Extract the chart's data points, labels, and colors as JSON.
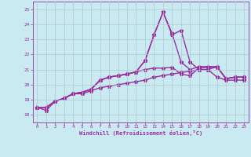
{
  "xlabel": "Windchill (Refroidissement éolien,°C)",
  "xlim": [
    -0.5,
    23.5
  ],
  "ylim": [
    17.5,
    25.5
  ],
  "yticks": [
    18,
    19,
    20,
    21,
    22,
    23,
    24,
    25
  ],
  "xticks": [
    0,
    1,
    2,
    3,
    4,
    5,
    6,
    7,
    8,
    9,
    10,
    11,
    12,
    13,
    14,
    15,
    16,
    17,
    18,
    19,
    20,
    21,
    22,
    23
  ],
  "background_color": "#c8eaf0",
  "grid_color": "#b0c8d0",
  "line_color": "#9b2da0",
  "line_width": 1.0,
  "marker": "*",
  "marker_size": 3.5,
  "series": [
    [
      18.5,
      18.5,
      18.9,
      19.1,
      19.4,
      19.4,
      19.6,
      19.8,
      19.9,
      20.0,
      20.1,
      20.2,
      20.3,
      20.5,
      20.6,
      20.7,
      20.8,
      20.9,
      21.0,
      21.0,
      20.5,
      20.3,
      20.3,
      20.3
    ],
    [
      18.5,
      18.3,
      18.9,
      19.1,
      19.4,
      19.5,
      19.7,
      20.3,
      20.5,
      20.6,
      20.7,
      20.85,
      21.0,
      21.1,
      21.1,
      21.15,
      20.7,
      20.6,
      21.1,
      21.15,
      21.15,
      20.4,
      20.5,
      20.5
    ],
    [
      18.5,
      18.5,
      18.9,
      19.1,
      19.4,
      19.5,
      19.7,
      20.3,
      20.5,
      20.6,
      20.7,
      20.85,
      21.6,
      23.3,
      24.8,
      23.4,
      21.5,
      21.0,
      21.2,
      21.2,
      21.2,
      20.4,
      20.5,
      20.5
    ],
    [
      18.5,
      18.5,
      18.9,
      19.1,
      19.4,
      19.5,
      19.7,
      20.3,
      20.5,
      20.6,
      20.7,
      20.85,
      21.6,
      23.3,
      24.8,
      23.3,
      23.6,
      21.5,
      21.0,
      21.0,
      21.2,
      20.4,
      20.5,
      20.5
    ]
  ]
}
